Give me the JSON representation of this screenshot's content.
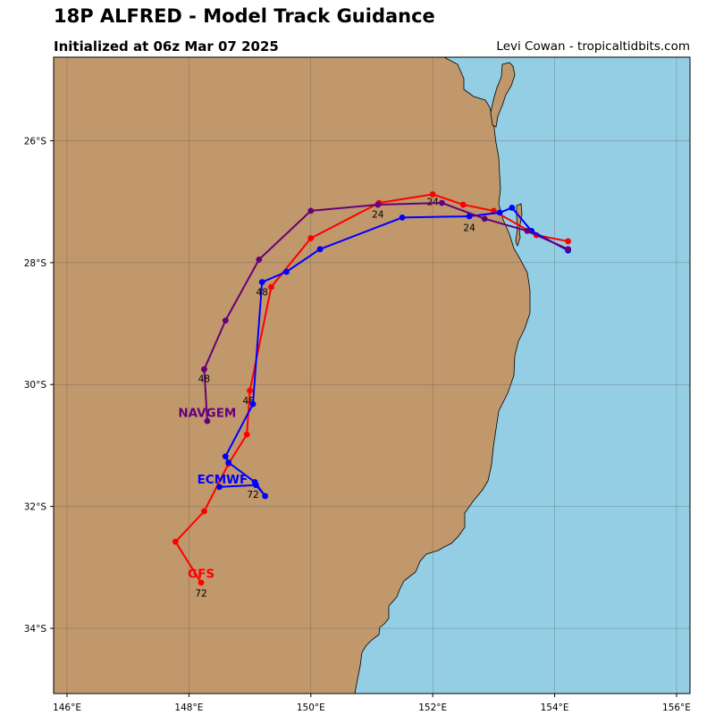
{
  "header": {
    "title": "18P ALFRED - Model Track Guidance",
    "subtitle": "Initialized at 06z Mar 07 2025",
    "credit": "Levi Cowan - tropicaltidbits.com"
  },
  "colors": {
    "land": "#c0986c",
    "ocean": "#94cee4",
    "grid": "#555555"
  },
  "axes": {
    "lon_range": [
      145.78,
      156.22
    ],
    "lat_range": [
      -35.07,
      -24.63
    ],
    "lon_ticks": [
      {
        "v": 146,
        "label": "146°E"
      },
      {
        "v": 148,
        "label": "148°E"
      },
      {
        "v": 150,
        "label": "150°E"
      },
      {
        "v": 152,
        "label": "152°E"
      },
      {
        "v": 154,
        "label": "154°E"
      },
      {
        "v": 156,
        "label": "156°E"
      }
    ],
    "lat_ticks": [
      {
        "v": -26,
        "label": "26°S"
      },
      {
        "v": -28,
        "label": "28°S"
      },
      {
        "v": -30,
        "label": "30°S"
      },
      {
        "v": -32,
        "label": "32°S"
      },
      {
        "v": -34,
        "label": "34°S"
      }
    ]
  },
  "tracks": [
    {
      "name": "GFS",
      "color": "#ff0000",
      "points": [
        [
          154.22,
          -27.65
        ],
        [
          153.7,
          -27.55
        ],
        [
          153.0,
          -27.15
        ],
        [
          152.5,
          -27.05
        ],
        [
          152.0,
          -26.88
        ],
        [
          151.12,
          -27.02
        ],
        [
          150.0,
          -27.6
        ],
        [
          149.35,
          -28.4
        ],
        [
          149.0,
          -30.1
        ],
        [
          148.95,
          -30.82
        ],
        [
          148.65,
          -31.3
        ],
        [
          148.25,
          -32.08
        ],
        [
          147.78,
          -32.58
        ],
        [
          148.2,
          -33.25
        ]
      ],
      "hour_labels": [
        {
          "text": "24",
          "lon": 152.0,
          "lat": -27.0
        },
        {
          "text": "48",
          "lon": 148.98,
          "lat": -30.26
        },
        {
          "text": "72",
          "lon": 148.2,
          "lat": -33.42
        }
      ],
      "name_label": {
        "lon": 148.2,
        "lat": -33.1
      }
    },
    {
      "name": "ECMWF",
      "color": "#0000ff",
      "points": [
        [
          154.22,
          -27.8
        ],
        [
          153.62,
          -27.48
        ],
        [
          153.3,
          -27.1
        ],
        [
          153.1,
          -27.18
        ],
        [
          152.6,
          -27.24
        ],
        [
          151.5,
          -27.26
        ],
        [
          150.15,
          -27.78
        ],
        [
          149.6,
          -28.15
        ],
        [
          149.2,
          -28.32
        ],
        [
          149.05,
          -30.32
        ],
        [
          148.6,
          -31.18
        ],
        [
          148.65,
          -31.28
        ],
        [
          149.08,
          -31.6
        ],
        [
          149.25,
          -31.83
        ],
        [
          149.1,
          -31.65
        ],
        [
          148.5,
          -31.68
        ]
      ],
      "hour_labels": [
        {
          "text": "24",
          "lon": 152.6,
          "lat": -27.42
        },
        {
          "text": "48",
          "lon": 149.2,
          "lat": -28.48
        },
        {
          "text": "72",
          "lon": 149.05,
          "lat": -31.8
        }
      ],
      "name_label": {
        "lon": 148.55,
        "lat": -31.55
      }
    },
    {
      "name": "NAVGEM",
      "color": "#660077",
      "points": [
        [
          154.22,
          -27.78
        ],
        [
          153.55,
          -27.48
        ],
        [
          152.85,
          -27.28
        ],
        [
          152.15,
          -27.02
        ],
        [
          151.1,
          -27.05
        ],
        [
          150.0,
          -27.15
        ],
        [
          149.15,
          -27.95
        ],
        [
          148.6,
          -28.95
        ],
        [
          148.25,
          -29.75
        ],
        [
          148.3,
          -30.6
        ]
      ],
      "hour_labels": [
        {
          "text": "24",
          "lon": 151.1,
          "lat": -27.2
        },
        {
          "text": "48",
          "lon": 148.25,
          "lat": -29.9
        }
      ],
      "name_label": {
        "lon": 148.3,
        "lat": -30.46
      }
    }
  ],
  "legend_note": ""
}
